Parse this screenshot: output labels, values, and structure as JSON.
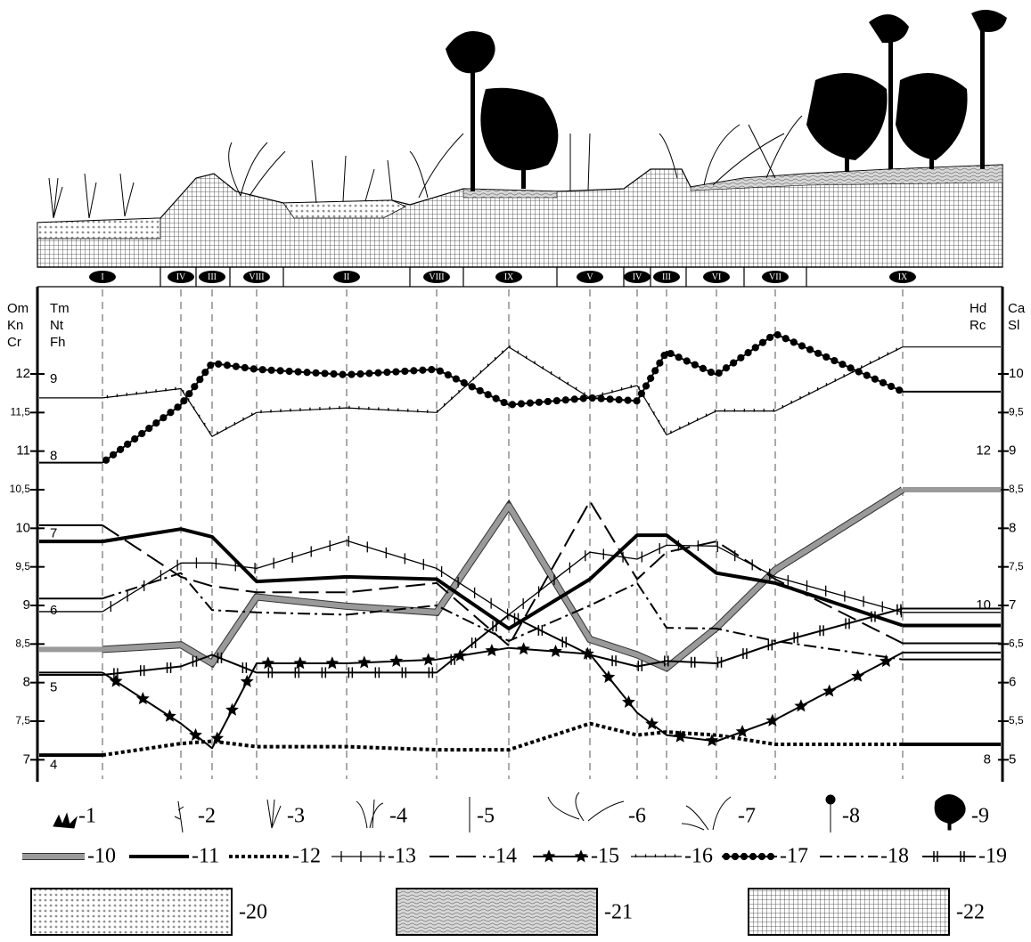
{
  "chart_data": {
    "type": "line",
    "categories": [
      "I",
      "IV",
      "III",
      "VIII",
      "II",
      "VIII",
      "IX",
      "V",
      "IV",
      "III",
      "VI",
      "VII",
      "IX"
    ],
    "ylim": [
      6.75,
      12.9
    ],
    "yticks": [
      7,
      {
        "value": 7.5,
        "label": "7,5"
      },
      8,
      {
        "value": 8.5,
        "label": "8,5"
      },
      9,
      {
        "value": 9.5,
        "label": "9,5"
      },
      10,
      {
        "value": 10.5,
        "label": "10,5"
      },
      11,
      {
        "value": 11.5,
        "label": "11,5"
      },
      12
    ],
    "axis_labels": {
      "left": [
        "Om",
        "Kn",
        "Cr"
      ],
      "left_inner": [
        "Tm",
        "Nt",
        "Fh"
      ],
      "right_inner": [
        "Hd",
        "Rc"
      ],
      "right": [
        "Ca",
        "Sl"
      ]
    },
    "y_left_inner": {
      "lim": [
        3.75,
        9.9
      ],
      "ticks": [
        4,
        5,
        6,
        7,
        8,
        9
      ]
    },
    "y_right_inner": {
      "lim": [
        7.75,
        13.9
      ],
      "ticks": [
        8,
        10,
        12
      ]
    },
    "y_right": {
      "lim": [
        4.75,
        10.9
      ],
      "ticks": [
        5,
        {
          "value": 5.5,
          "label": "5,5"
        },
        6,
        {
          "value": 6.5,
          "label": "6,5"
        },
        7,
        {
          "value": 7.5,
          "label": "7,5"
        },
        8,
        {
          "value": 8.5,
          "label": "8,5"
        },
        9,
        {
          "value": 9.5,
          "label": "9,5"
        },
        10
      ]
    },
    "series": [
      {
        "name": "-10",
        "color": "#9a9a9a",
        "style": "gray-band",
        "values": [
          8.43,
          8.49,
          8.25,
          9.11,
          8.99,
          8.91,
          10.29,
          8.56,
          8.36,
          8.19,
          8.71,
          9.46,
          10.5
        ]
      },
      {
        "name": "-11",
        "color": "#000000",
        "style": "thick",
        "values": [
          9.83,
          9.99,
          9.89,
          9.31,
          9.37,
          9.34,
          8.7,
          9.34,
          9.91,
          9.91,
          9.42,
          9.29,
          8.74
        ]
      },
      {
        "name": "-12",
        "color": "#000000",
        "style": "dashed-thick",
        "values": [
          7.06,
          7.21,
          7.24,
          7.17,
          7.17,
          7.13,
          7.13,
          7.47,
          7.32,
          7.36,
          7.32,
          7.2,
          7.2
        ]
      },
      {
        "name": "-13",
        "color": "#000000",
        "style": "cross",
        "values": [
          8.92,
          9.55,
          9.55,
          9.48,
          9.84,
          9.48,
          8.88,
          9.69,
          9.6,
          9.78,
          9.77,
          9.37,
          8.91
        ]
      },
      {
        "name": "-14",
        "color": "#000000",
        "style": "long-dash",
        "values": [
          10.04,
          9.37,
          9.25,
          9.17,
          9.17,
          9.29,
          8.48,
          10.35,
          9.34,
          9.69,
          9.83,
          9.34,
          8.51
        ]
      },
      {
        "name": "-15",
        "color": "#000000",
        "style": "star",
        "values": [
          8.13,
          7.47,
          7.15,
          8.25,
          8.25,
          8.3,
          8.45,
          8.37,
          7.61,
          7.32,
          7.24,
          7.52,
          8.39
        ]
      },
      {
        "name": "-16",
        "color": "#000000",
        "style": "tick",
        "values": [
          11.69,
          11.81,
          11.19,
          11.5,
          11.56,
          11.5,
          12.35,
          11.69,
          11.85,
          11.21,
          11.52,
          11.52,
          12.35
        ]
      },
      {
        "name": "-17",
        "color": "#000000",
        "style": "dots",
        "values": [
          10.85,
          11.6,
          12.14,
          12.06,
          11.99,
          12.06,
          11.6,
          11.69,
          11.65,
          12.29,
          11.99,
          12.52,
          11.77
        ]
      },
      {
        "name": "-18",
        "color": "#000000",
        "style": "dot-dash",
        "values": [
          9.09,
          9.42,
          8.94,
          8.91,
          8.88,
          9.0,
          8.54,
          9.0,
          9.29,
          8.71,
          8.7,
          8.54,
          8.3
        ]
      },
      {
        "name": "-19",
        "color": "#000000",
        "style": "double-tick",
        "values": [
          8.1,
          8.21,
          8.36,
          8.13,
          8.13,
          8.13,
          8.88,
          8.36,
          8.21,
          8.28,
          8.25,
          8.51,
          8.96
        ]
      }
    ],
    "legend_icons": [
      "-1",
      "-2",
      "-3",
      "-4",
      "-5",
      "-6",
      "-7",
      "-8",
      "-9"
    ],
    "fill_legend": [
      "-20",
      "-21",
      "-22"
    ]
  }
}
